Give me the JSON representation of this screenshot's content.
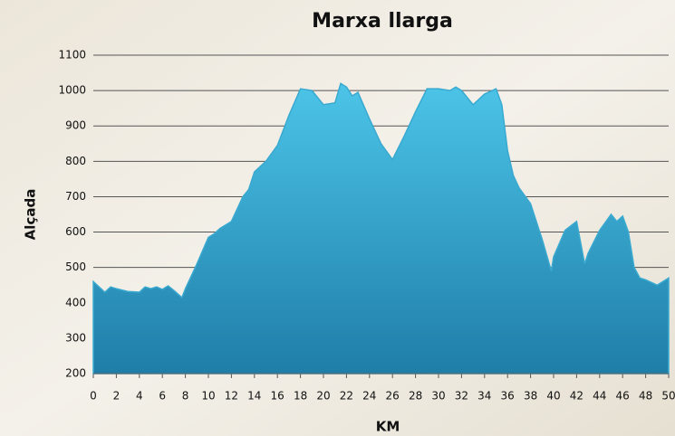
{
  "chart_data": {
    "type": "area",
    "title": "Marxa llarga",
    "x_label": "KM",
    "y_label": "Alçada",
    "x": [
      0,
      0.5,
      1,
      1.5,
      2,
      3,
      4,
      4.5,
      5,
      5.5,
      6,
      6.5,
      7,
      7.7,
      8,
      9,
      10,
      10.5,
      11,
      12,
      13,
      13.5,
      14,
      15,
      16,
      17,
      18,
      19,
      20,
      21,
      21.5,
      22,
      22.5,
      23,
      24,
      25,
      26,
      27,
      28,
      29,
      30,
      31,
      31.5,
      32,
      33,
      34,
      35,
      35.5,
      36,
      36.5,
      37,
      38,
      39,
      39.8,
      40,
      41,
      42,
      42.7,
      43,
      44,
      45,
      45.5,
      46,
      46.5,
      47,
      47.5,
      48,
      49,
      50
    ],
    "values": [
      460,
      445,
      430,
      445,
      440,
      432,
      430,
      445,
      440,
      445,
      438,
      448,
      435,
      415,
      440,
      510,
      585,
      595,
      610,
      630,
      700,
      720,
      770,
      800,
      845,
      930,
      1005,
      1000,
      960,
      965,
      1020,
      1010,
      985,
      995,
      920,
      850,
      805,
      870,
      940,
      1005,
      1005,
      1000,
      1010,
      1000,
      960,
      990,
      1005,
      960,
      830,
      760,
      725,
      680,
      580,
      490,
      530,
      605,
      630,
      510,
      540,
      605,
      650,
      630,
      645,
      600,
      500,
      470,
      465,
      450,
      470
    ],
    "color": "#3aa9d0",
    "xlim": [
      0,
      50
    ],
    "xticks": [
      0,
      2,
      4,
      6,
      8,
      10,
      12,
      14,
      16,
      18,
      20,
      22,
      24,
      26,
      28,
      30,
      32,
      34,
      36,
      38,
      40,
      42,
      44,
      46,
      48,
      50
    ],
    "ylim": [
      200,
      1100
    ],
    "yticks": [
      200,
      300,
      400,
      500,
      600,
      700,
      800,
      900,
      1000,
      1100
    ],
    "grid": true
  }
}
